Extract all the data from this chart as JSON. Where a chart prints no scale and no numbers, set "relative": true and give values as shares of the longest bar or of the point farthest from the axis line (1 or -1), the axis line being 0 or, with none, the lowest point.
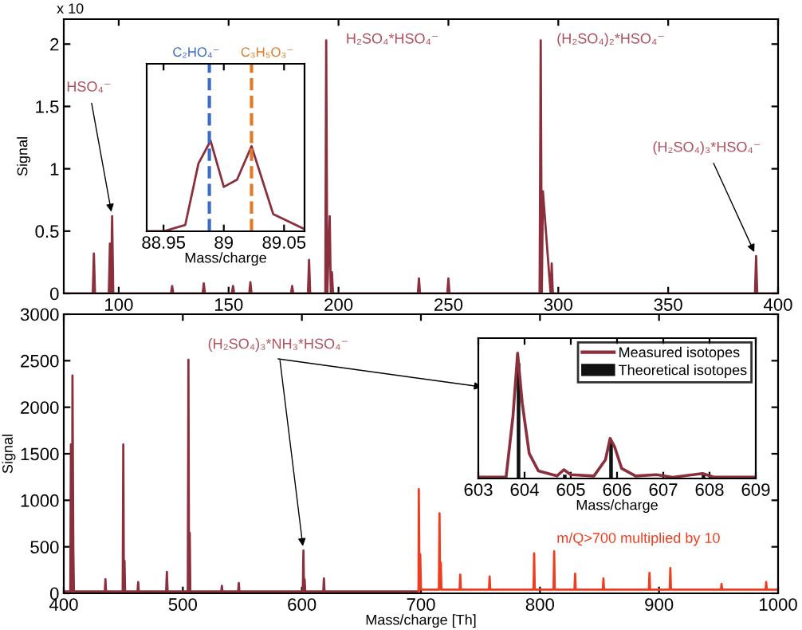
{
  "chart_data": [
    {
      "type": "line",
      "ylabel": "Signal",
      "xlim": [
        75,
        400
      ],
      "ylim": [
        0,
        2.2
      ],
      "xticks": [
        100,
        150,
        200,
        250,
        300,
        350,
        400
      ],
      "yticks": [
        0,
        0.5,
        1,
        1.5,
        2
      ],
      "grid": false,
      "legend": false,
      "series": [
        {
          "color": "#8b2f3c",
          "x": [
            75,
            88.2,
            88.7,
            89.2,
            95.5,
            96,
            96.5,
            97,
            97.5,
            123.8,
            124.3,
            124.8,
            138.2,
            138.7,
            139.2,
            151.5,
            152,
            152.5,
            159.4,
            159.9,
            160.4,
            178.4,
            178.9,
            179.4,
            186.1,
            186.6,
            187.1,
            194,
            194.4,
            194.9,
            196,
            196.5,
            197,
            197.5,
            236.1,
            236.6,
            237.1,
            249.5,
            250,
            250.5,
            291.5,
            292,
            292.5,
            293,
            296.5,
            297,
            297.5,
            389.5,
            390,
            390.5,
            400
          ],
          "values": [
            0,
            0,
            0.32,
            0,
            0,
            0.4,
            0,
            0.62,
            0,
            0,
            0.06,
            0,
            0,
            0.08,
            0,
            0,
            0.06,
            0,
            0,
            0.09,
            0,
            0,
            0.06,
            0,
            0,
            0.27,
            0,
            0,
            2.03,
            0,
            0.62,
            0,
            0.17,
            0,
            0,
            0.12,
            0,
            0,
            0.12,
            0,
            0,
            2.03,
            0,
            0.82,
            0,
            0.24,
            0,
            0,
            0.3,
            0,
            0
          ]
        }
      ],
      "annotations": [
        "x 10",
        {
          "text": "HSO₄⁻",
          "x": 97,
          "y": 0.62
        },
        {
          "text": "H₂SO₄*HSO₄⁻",
          "x": 194.4,
          "y": 2.03
        },
        {
          "text": "(H₂SO₄)₂*HSO₄⁻",
          "x": 292,
          "y": 2.03
        },
        {
          "text": "(H₂SO₄)₃*HSO₄⁻",
          "x": 390,
          "y": 0.3
        }
      ]
    },
    {
      "type": "line",
      "xlabel": "Mass/charge",
      "relative": true,
      "xlim": [
        88.936,
        89.067
      ],
      "xticks": [
        88.95,
        89,
        89.05
      ],
      "grid": false,
      "legend": false,
      "series": [
        {
          "color": "#8b2f3c",
          "x": [
            88.936,
            88.95,
            88.968,
            88.979,
            88.989,
            89.0,
            89.011,
            89.023,
            89.041,
            89.066
          ],
          "values": [
            0,
            0,
            0.07,
            0.75,
            1,
            0.49,
            0.57,
            0.94,
            0.19,
            0.03
          ]
        }
      ],
      "ref_lines": [
        {
          "axis": "x",
          "value": 88.988,
          "label": "C₂HO₄⁻",
          "color": "#3a6bc8",
          "line_style": "dashed"
        },
        {
          "axis": "x",
          "value": 89.023,
          "label": "C₃H₅O₃⁻",
          "color": "#e07a28",
          "line_style": "dashed"
        }
      ]
    },
    {
      "type": "line",
      "xlabel": "Mass/charge [Th]",
      "ylabel": "Signal",
      "xlim": [
        400,
        1000
      ],
      "ylim": [
        0,
        3000
      ],
      "xticks": [
        400,
        500,
        600,
        700,
        800,
        900,
        1000
      ],
      "yticks": [
        0,
        500,
        1000,
        1500,
        2000,
        2500,
        3000
      ],
      "grid": false,
      "legend": false,
      "series": [
        {
          "color": "#8b2f3c",
          "x": [
            400,
            405.5,
            406,
            406.5,
            407,
            407.3,
            408,
            408.5,
            409.3,
            434.5,
            435,
            435.5,
            449.5,
            450,
            450.5,
            451,
            451.5,
            462,
            462.5,
            463,
            486,
            486.6,
            487.2,
            504.2,
            504.7,
            505.2,
            505.8,
            506.3,
            532.3,
            532.8,
            533.3,
            546.5,
            547,
            547.5,
            600.8,
            601.3,
            601.8,
            602.3,
            602.8,
            618,
            618.5,
            619,
            698
          ],
          "values": [
            20,
            20,
            1600,
            20,
            20,
            2340,
            480,
            20,
            20,
            20,
            150,
            20,
            20,
            1600,
            20,
            350,
            20,
            20,
            120,
            20,
            20,
            230,
            20,
            20,
            2510,
            20,
            650,
            20,
            20,
            80,
            20,
            20,
            110,
            20,
            20,
            460,
            20,
            150,
            20,
            20,
            160,
            20,
            20
          ]
        },
        {
          "color": "#f03c1e",
          "x": [
            698,
            698.2,
            698.8,
            699.4,
            700,
            715.1,
            715.6,
            716.1,
            716.7,
            717.2,
            732.5,
            733,
            733.5,
            757.2,
            757.7,
            758.2,
            794.6,
            795.1,
            795.6,
            811.4,
            811.9,
            812.4,
            829,
            829.5,
            830,
            852.8,
            853.3,
            853.8,
            891.5,
            892,
            892.5,
            909,
            909.5,
            910,
            952,
            952.5,
            953,
            989.5,
            990,
            990.5,
            1000
          ],
          "values": [
            20,
            1120,
            40,
            420,
            40,
            40,
            860,
            40,
            330,
            40,
            40,
            200,
            40,
            40,
            180,
            40,
            40,
            430,
            40,
            40,
            450,
            40,
            40,
            210,
            40,
            40,
            160,
            40,
            40,
            220,
            40,
            40,
            270,
            40,
            40,
            100,
            40,
            40,
            120,
            40,
            40
          ]
        }
      ],
      "annotations": [
        {
          "text": "(H₂SO₄)₃*NH₃*HSO₄⁻",
          "x": 601.3,
          "y": 460
        },
        "m/Q>700 multiplied by 10"
      ]
    },
    {
      "type": "line",
      "xlabel": "Mass/charge",
      "relative": true,
      "xlim": [
        603,
        609
      ],
      "xticks": [
        603,
        604,
        605,
        606,
        607,
        608,
        609
      ],
      "grid": false,
      "legend": "top right",
      "series": [
        {
          "name": "Measured isotopes",
          "color": "#8b2f3c",
          "x": [
            603,
            603.6,
            603.75,
            603.85,
            603.95,
            604.1,
            604.3,
            604.7,
            604.85,
            605.0,
            605.5,
            605.75,
            605.85,
            605.95,
            606.1,
            606.4,
            606.85,
            607.2,
            607.85,
            608.1,
            609
          ],
          "values": [
            0.01,
            0.01,
            0.5,
            1,
            0.6,
            0.2,
            0.06,
            0.02,
            0.07,
            0.03,
            0.02,
            0.15,
            0.32,
            0.25,
            0.08,
            0.02,
            0.03,
            0.01,
            0.04,
            0.01,
            0.01
          ]
        },
        {
          "name": "Theoretical isotopes",
          "type": "bar",
          "color": "#111111",
          "x": [
            603.87,
            604.87,
            605.87,
            606.87,
            607.87
          ],
          "values": [
            0.92,
            0.03,
            0.3,
            null,
            0.03
          ]
        }
      ]
    }
  ]
}
